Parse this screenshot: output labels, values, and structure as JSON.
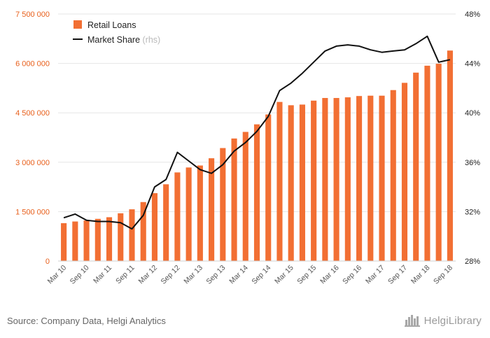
{
  "colors": {
    "bar": "#f26f33",
    "line": "#111111",
    "left_axis_text": "#e8601c",
    "grid": "#e6e6e6"
  },
  "source": "Source: Company Data, Helgi Analytics",
  "logo": {
    "text": "HelgiLibrary"
  },
  "chart_data": {
    "type": "bar",
    "title": "",
    "xlabel": "",
    "ylabel": "",
    "categories": [
      "Mar 10",
      "Jun 10",
      "Sep 10",
      "Dec 10",
      "Mar 11",
      "Jun 11",
      "Sep 11",
      "Dec 11",
      "Mar 12",
      "Jun 12",
      "Sep 12",
      "Dec 12",
      "Mar 13",
      "Jun 13",
      "Sep 13",
      "Dec 13",
      "Mar 14",
      "Jun 14",
      "Sep 14",
      "Dec 14",
      "Mar 15",
      "Jun 15",
      "Sep 15",
      "Dec 15",
      "Mar 16",
      "Jun 16",
      "Sep 16",
      "Dec 16",
      "Mar 17",
      "Jun 17",
      "Sep 17",
      "Dec 17",
      "Mar 18",
      "Jun 18",
      "Sep 18"
    ],
    "x_tick_labels": [
      "Mar 10",
      "Sep 10",
      "Mar 11",
      "Sep 11",
      "Mar 12",
      "Sep 12",
      "Mar 13",
      "Sep 13",
      "Mar 14",
      "Sep 14",
      "Mar 15",
      "Sep 15",
      "Mar 16",
      "Sep 16",
      "Mar 17",
      "Sep 17",
      "Mar 18",
      "Sep 18"
    ],
    "y_left": {
      "ylim": [
        0,
        7500000
      ],
      "ticks": [
        0,
        1500000,
        3000000,
        4500000,
        6000000,
        7500000
      ],
      "tick_labels": [
        "0",
        "1 500 000",
        "3 000 000",
        "4 500 000",
        "6 000 000",
        "7 500 000"
      ]
    },
    "y_right": {
      "ylim": [
        28,
        48
      ],
      "ticks": [
        28,
        32,
        36,
        40,
        44,
        48
      ],
      "tick_labels": [
        "28%",
        "32%",
        "36%",
        "40%",
        "44%",
        "48%"
      ]
    },
    "series": [
      {
        "name": "Retail Loans",
        "type": "bar",
        "axis": "left",
        "values": [
          1150000,
          1200000,
          1230000,
          1280000,
          1330000,
          1450000,
          1570000,
          1790000,
          2060000,
          2330000,
          2690000,
          2840000,
          2900000,
          3120000,
          3430000,
          3720000,
          3920000,
          4150000,
          4450000,
          4830000,
          4730000,
          4750000,
          4870000,
          4950000,
          4950000,
          4970000,
          5010000,
          5020000,
          5020000,
          5190000,
          5410000,
          5720000,
          5930000,
          5990000,
          6390000
        ]
      },
      {
        "name": "Market Share",
        "name_suffix": "(rhs)",
        "type": "line",
        "axis": "right",
        "values": [
          31.5,
          31.8,
          31.3,
          31.2,
          31.2,
          31.1,
          30.6,
          31.7,
          34.0,
          34.6,
          36.8,
          36.1,
          35.4,
          35.1,
          35.8,
          36.9,
          37.6,
          38.5,
          39.7,
          41.8,
          42.4,
          43.2,
          44.1,
          45.0,
          45.4,
          45.5,
          45.4,
          45.1,
          44.9,
          45.0,
          45.1,
          45.6,
          46.2,
          44.1,
          44.3
        ]
      }
    ]
  }
}
